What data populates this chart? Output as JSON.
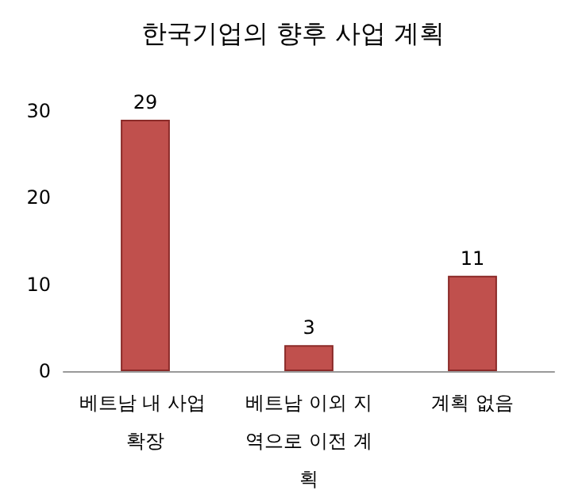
{
  "chart_data": {
    "type": "bar",
    "title": "한국기업의 향후 사업 계획",
    "categories": [
      "베트남 내 사업 확장",
      "베트남 이외 지역으로 이전 계획",
      "계획 없음"
    ],
    "values": [
      29,
      3,
      11
    ],
    "color": "#c0504d",
    "data_labels": true,
    "grid": false,
    "ylim": [
      0,
      30
    ],
    "yticks": [
      0,
      10,
      20,
      30
    ]
  }
}
